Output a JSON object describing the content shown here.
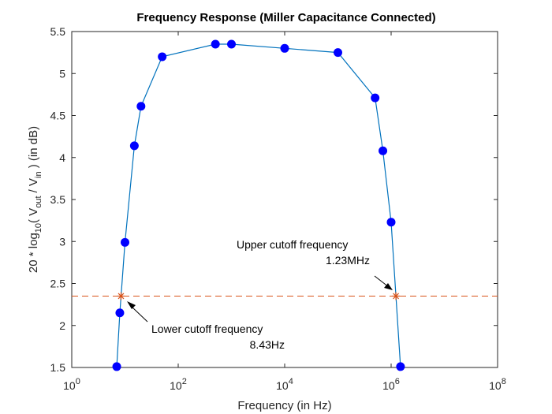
{
  "chart_data": {
    "type": "line",
    "title": "Frequency Response (Miller Capacitance Connected)",
    "xlabel": "Frequency (in Hz)",
    "ylabel": {
      "prefix": "20 * log",
      "sub1": "10",
      "mid1": "( V",
      "sub2": "out",
      "mid2": "  /  V",
      "sub3": "in",
      "suffix": " ) (in dB)"
    },
    "x_scale": "log",
    "xlim": [
      1,
      100000000
    ],
    "ylim": [
      1.5,
      5.5
    ],
    "x_ticks": [
      {
        "value": 1,
        "base": "10",
        "exp": "0"
      },
      {
        "value": 100,
        "base": "10",
        "exp": "2"
      },
      {
        "value": 10000,
        "base": "10",
        "exp": "4"
      },
      {
        "value": 1000000,
        "base": "10",
        "exp": "6"
      },
      {
        "value": 100000000,
        "base": "10",
        "exp": "8"
      }
    ],
    "y_ticks": [
      "1.5",
      "2",
      "2.5",
      "3",
      "3.5",
      "4",
      "4.5",
      "5",
      "5.5"
    ],
    "grid": false,
    "series": [
      {
        "color": "#0072BD",
        "marker_color": "#0000FF",
        "x": [
          7,
          8,
          10,
          15,
          20,
          50,
          500,
          1000,
          10000,
          100000,
          500000,
          700000,
          1000000,
          1500000
        ],
        "y": [
          1.51,
          2.15,
          2.99,
          4.14,
          4.61,
          5.2,
          5.35,
          5.35,
          5.3,
          5.25,
          4.71,
          4.08,
          3.23,
          1.51
        ]
      }
    ],
    "cutoff_level": 2.35,
    "cutoff_line_color": "#D95319",
    "cutoff_points": [
      {
        "x": 8.43,
        "y": 2.35,
        "label_line1": "Lower cutoff frequency",
        "label_line2": "8.43Hz"
      },
      {
        "x": 1230000,
        "y": 2.35,
        "label_line1": "Upper cutoff frequency",
        "label_line2": "1.23MHz"
      }
    ]
  }
}
